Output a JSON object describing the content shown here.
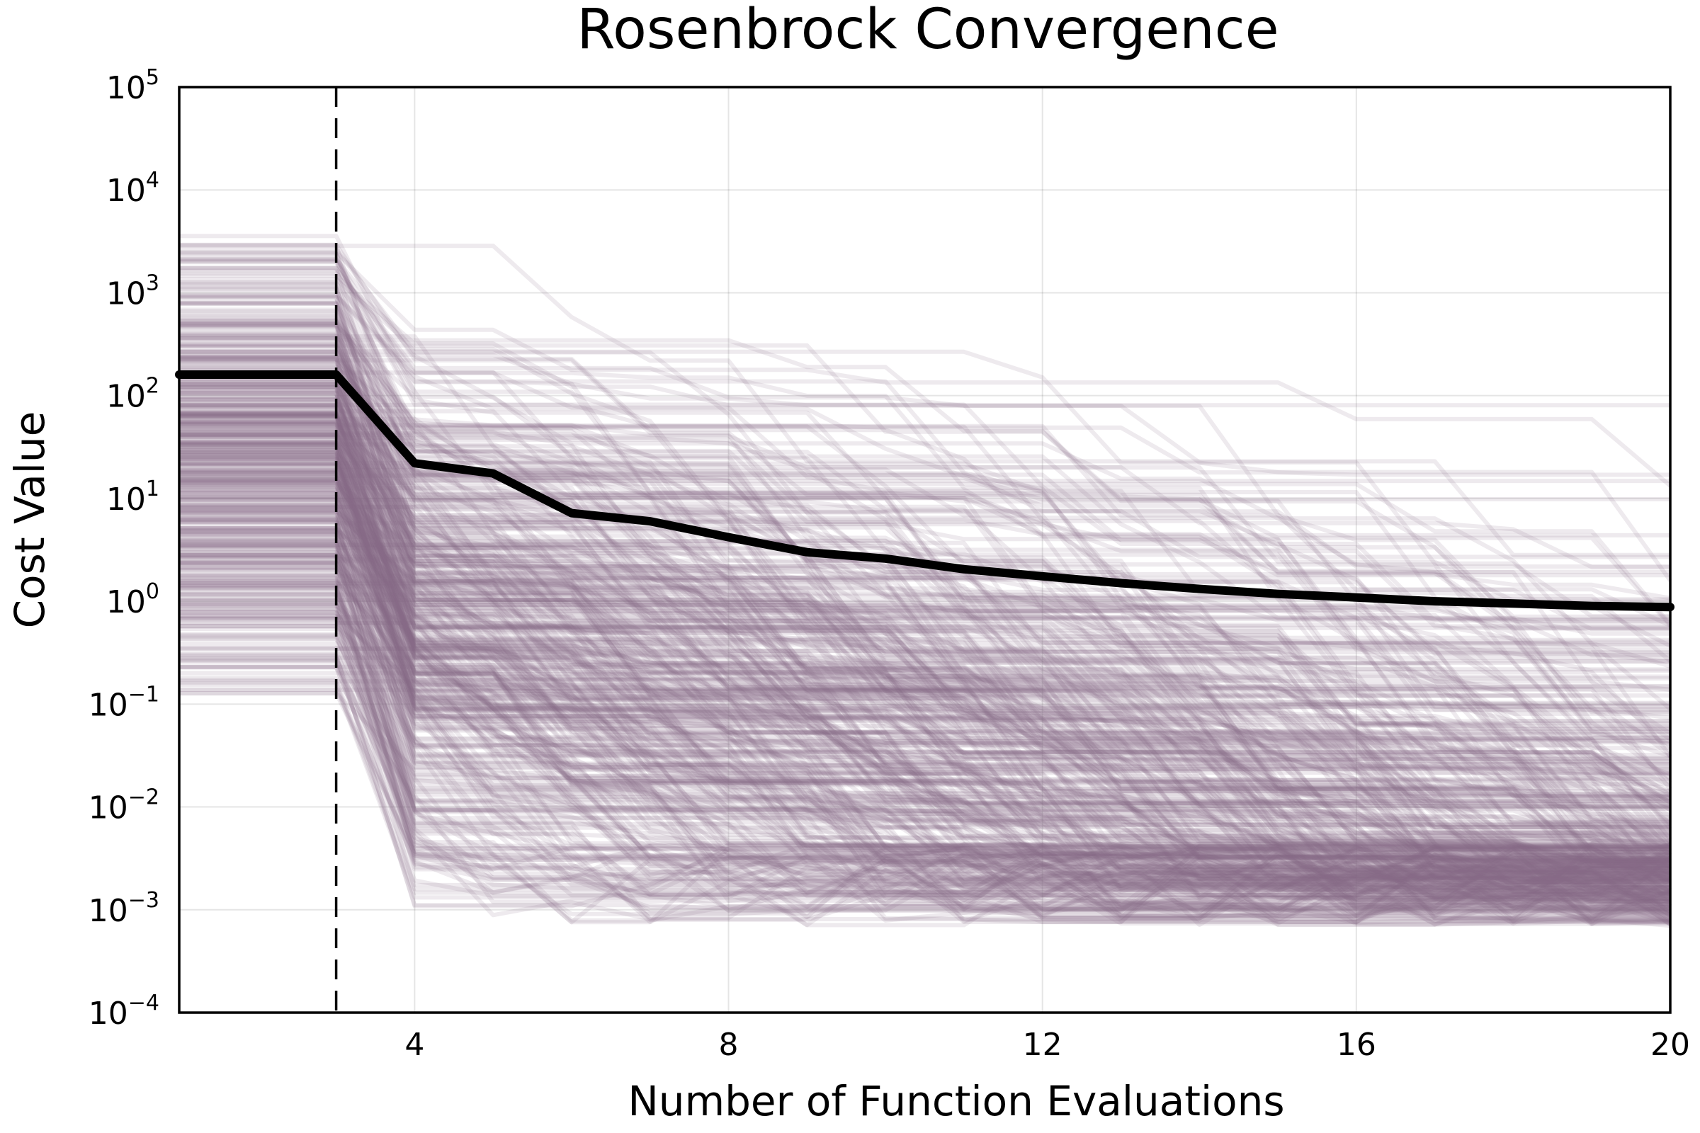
{
  "chart_data": {
    "type": "line",
    "title": "Rosenbrock Convergence",
    "xlabel": "Number of Function Evaluations",
    "ylabel": "Cost Value",
    "xlim": [
      1,
      20
    ],
    "ylim": [
      0.0001,
      100000
    ],
    "yscale": "log",
    "grid": true,
    "legend": "none",
    "x_ticks": [
      4,
      8,
      12,
      16,
      20
    ],
    "x_tick_labels": [
      "4",
      "8",
      "12",
      "16",
      "20"
    ],
    "y_ticks": [
      0.0001,
      0.001,
      0.01,
      0.1,
      1,
      10,
      100,
      1000,
      10000,
      100000
    ],
    "y_tick_labels": [
      {
        "base": "10",
        "exp": "−4"
      },
      {
        "base": "10",
        "exp": "−3"
      },
      {
        "base": "10",
        "exp": "−2"
      },
      {
        "base": "10",
        "exp": "−1"
      },
      {
        "base": "10",
        "exp": "0"
      },
      {
        "base": "10",
        "exp": "1"
      },
      {
        "base": "10",
        "exp": "2"
      },
      {
        "base": "10",
        "exp": "3"
      },
      {
        "base": "10",
        "exp": "4"
      },
      {
        "base": "10",
        "exp": "5"
      }
    ],
    "vertical_line": {
      "x": 3,
      "style": "dashed",
      "color": "#000000"
    },
    "mean_series": {
      "color": "#000000",
      "x": [
        1,
        2,
        3,
        4,
        5,
        6,
        7,
        8,
        9,
        10,
        11,
        12,
        13,
        14,
        15,
        16,
        17,
        18,
        19,
        20
      ],
      "y": [
        160,
        160,
        160,
        22,
        17.5,
        7.2,
        6.0,
        4.2,
        3.0,
        2.6,
        2.05,
        1.75,
        1.5,
        1.32,
        1.18,
        1.09,
        1.0,
        0.95,
        0.9,
        0.88
      ]
    },
    "traces": {
      "count": 500,
      "color": "#886a8a",
      "opacity": 0.14,
      "x": [
        1,
        2,
        3,
        4,
        5,
        6,
        7,
        8,
        9,
        10,
        11,
        12,
        13,
        14,
        15,
        16,
        17,
        18,
        19,
        20
      ],
      "initial_range": [
        0.065,
        6000
      ],
      "final_range": [
        0.0007,
        5.5
      ]
    }
  }
}
